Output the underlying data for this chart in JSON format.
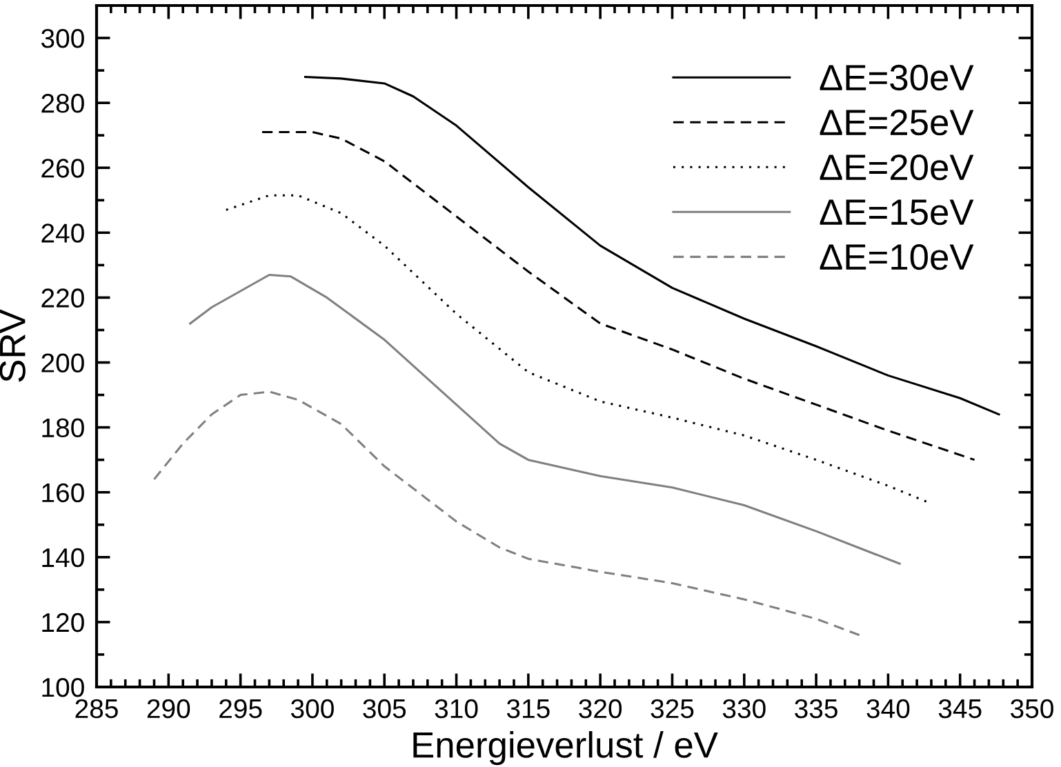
{
  "chart_data": {
    "type": "line",
    "xlabel": "Energieverlust / eV",
    "ylabel": "SRV",
    "xlim": [
      285,
      350
    ],
    "ylim": [
      100,
      310
    ],
    "xticks": [
      285,
      290,
      295,
      300,
      305,
      310,
      315,
      320,
      325,
      330,
      335,
      340,
      345,
      350
    ],
    "yticks": [
      100,
      120,
      140,
      160,
      180,
      200,
      220,
      240,
      260,
      280,
      300
    ],
    "grid": false,
    "legend": "top right",
    "marker": "none",
    "series": [
      {
        "name": "ΔE=30eV",
        "color": "#000000",
        "line_style": "solid",
        "x": [
          299.5,
          302,
          305,
          307,
          310,
          315,
          320,
          325,
          330,
          335,
          340,
          345,
          347.7
        ],
        "values": [
          288,
          287.5,
          286,
          282,
          273,
          254,
          236,
          223,
          213.5,
          205,
          196,
          189,
          184
        ]
      },
      {
        "name": "ΔE=25eV",
        "color": "#000000",
        "line_style": "dashed",
        "x": [
          296.5,
          300,
          302,
          305,
          310,
          315,
          320,
          325,
          330,
          335,
          340,
          346
        ],
        "values": [
          271,
          271,
          269,
          262,
          245,
          228,
          212,
          204,
          195,
          187,
          179,
          170
        ]
      },
      {
        "name": "ΔE=20eV",
        "color": "#000000",
        "line_style": "dotted",
        "x": [
          294,
          297,
          299,
          302,
          305,
          310,
          315,
          320,
          325,
          330,
          335,
          340,
          343
        ],
        "values": [
          247,
          251.5,
          251.5,
          246,
          236,
          215,
          197,
          188,
          183,
          177.5,
          170,
          162,
          156.5
        ]
      },
      {
        "name": "ΔE=15eV",
        "color": "#808080",
        "line_style": "solid",
        "x": [
          291.5,
          293,
          295,
          297,
          298.5,
          301,
          305,
          310,
          313,
          315,
          320,
          325,
          330,
          335,
          340.8
        ],
        "values": [
          212,
          217,
          222,
          227,
          226.5,
          220,
          207,
          187,
          175,
          170,
          165,
          161.5,
          156,
          148,
          138
        ]
      },
      {
        "name": "ΔE=10eV",
        "color": "#808080",
        "line_style": "dashed",
        "x": [
          289,
          291,
          293,
          295,
          297,
          299,
          302,
          305,
          310,
          313,
          315,
          320,
          325,
          330,
          335,
          338
        ],
        "values": [
          164,
          175,
          184,
          190,
          191,
          188.5,
          181,
          168,
          151,
          143,
          139.5,
          135.5,
          132,
          127,
          121,
          116
        ]
      }
    ]
  }
}
